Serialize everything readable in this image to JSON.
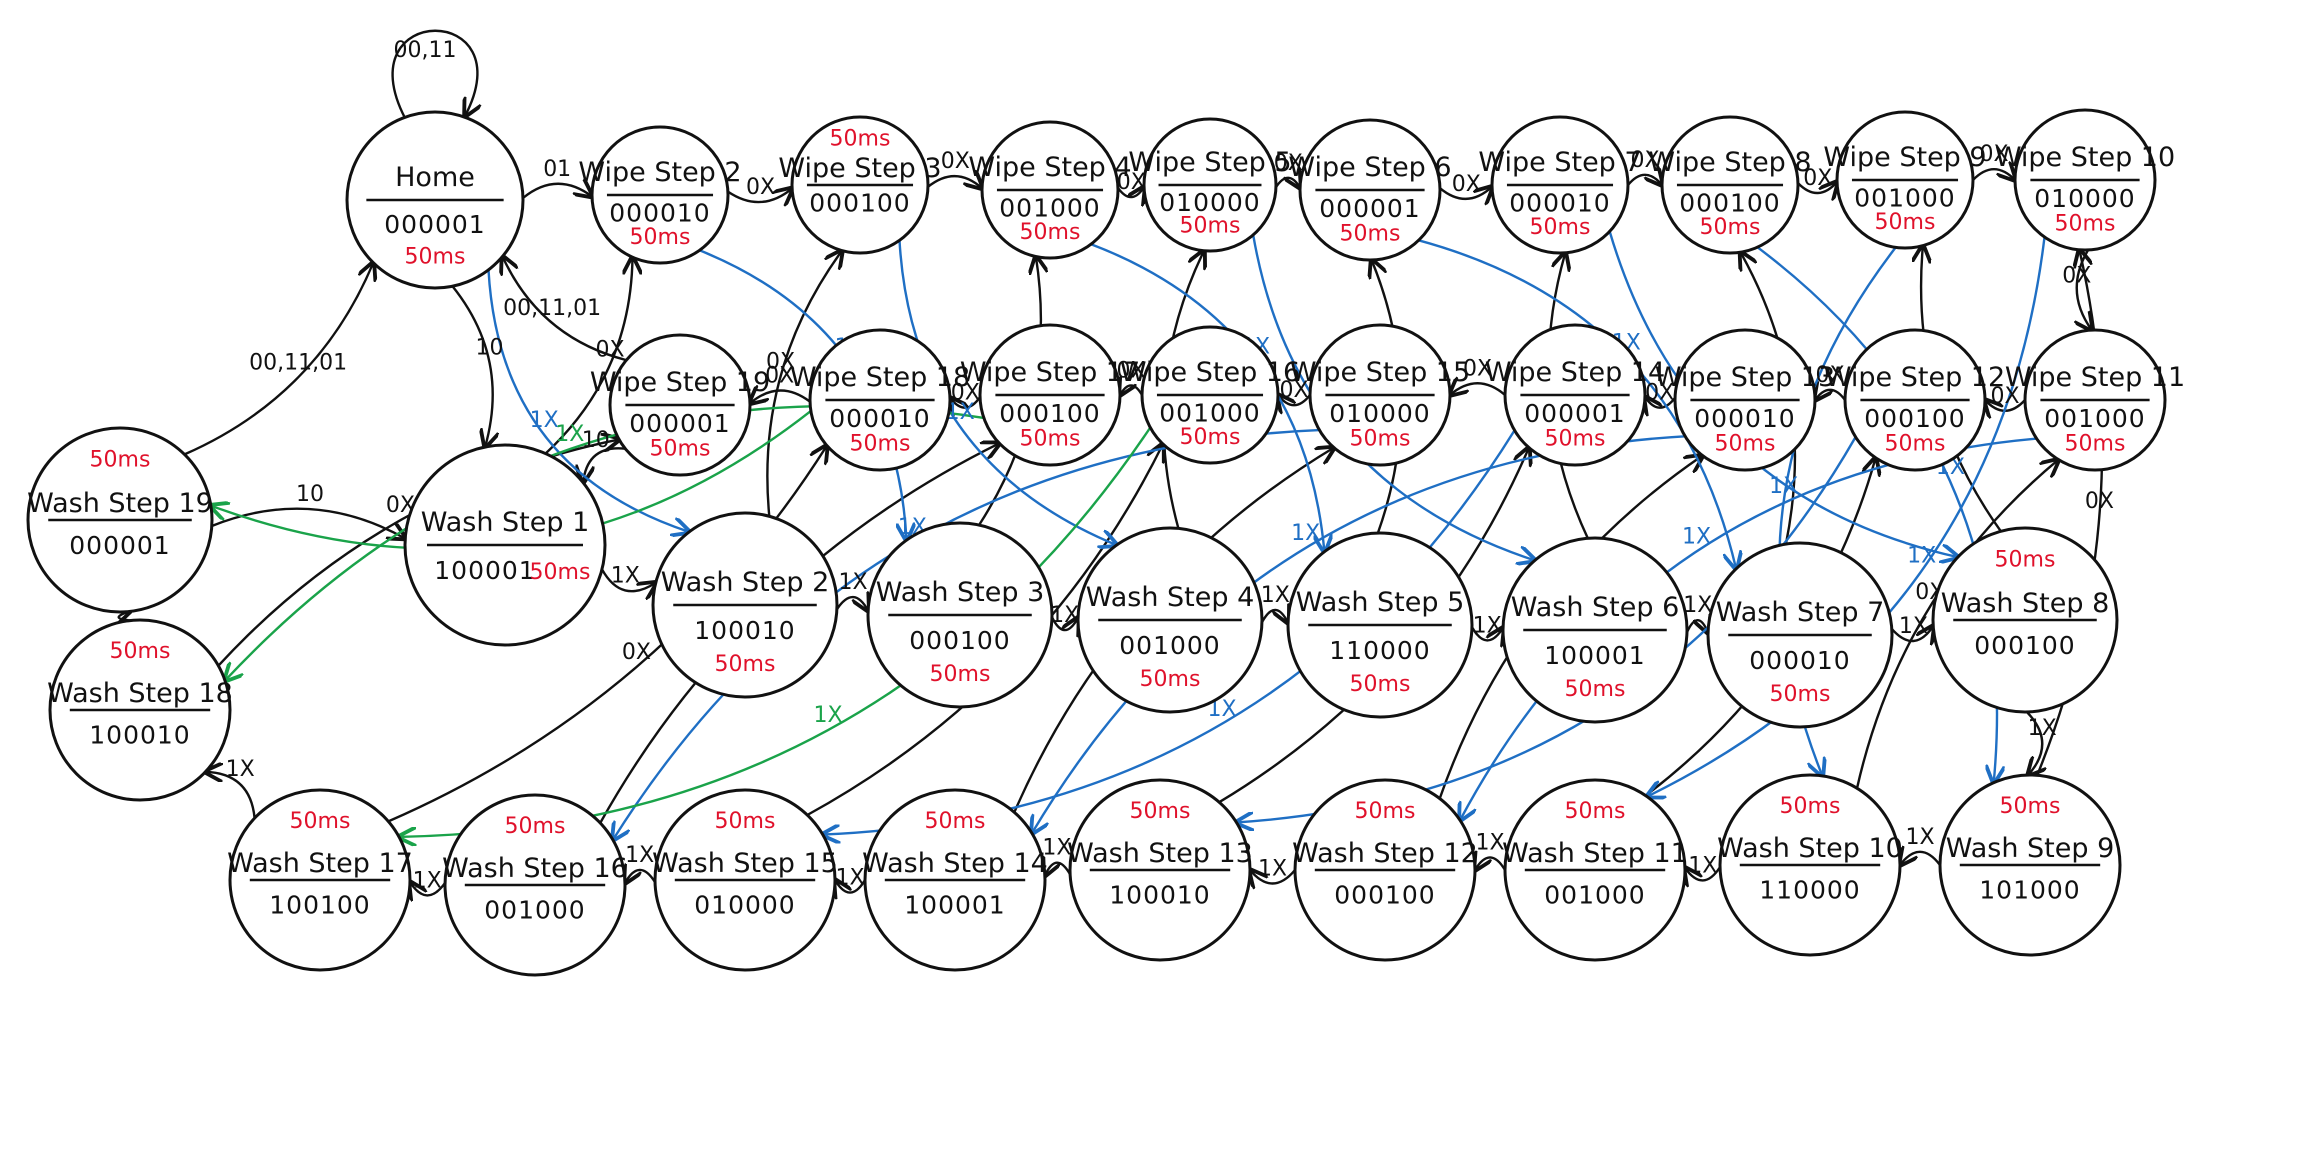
{
  "colors": {
    "ink": "#111111",
    "delay": "#e0112b",
    "blue_edges": "#1f6fc4",
    "green_edges": "#1aa34a"
  },
  "states": {
    "home": {
      "name": "Home",
      "code": "000001",
      "delay": "50ms"
    },
    "wipe2": {
      "name": "Wipe Step 2",
      "code": "000010",
      "delay": "50ms"
    },
    "wipe3": {
      "name": "Wipe Step 3",
      "code": "000100",
      "delay": "50ms"
    },
    "wipe4": {
      "name": "Wipe Step 4",
      "code": "001000",
      "delay": "50ms"
    },
    "wipe5": {
      "name": "Wipe Step 5",
      "code": "010000",
      "delay": "50ms"
    },
    "wipe6": {
      "name": "Wipe Step 6",
      "code": "000001",
      "delay": "50ms"
    },
    "wipe7": {
      "name": "Wipe Step 7",
      "code": "000010",
      "delay": "50ms"
    },
    "wipe8": {
      "name": "Wipe Step 8",
      "code": "000100",
      "delay": "50ms"
    },
    "wipe9": {
      "name": "Wipe Step 9",
      "code": "001000",
      "delay": "50ms"
    },
    "wipe10": {
      "name": "Wipe Step 10",
      "code": "010000",
      "delay": "50ms"
    },
    "wipe11": {
      "name": "Wipe Step 11",
      "code": "001000",
      "delay": "50ms"
    },
    "wipe12": {
      "name": "Wipe Step 12",
      "code": "000100",
      "delay": "50ms"
    },
    "wipe13": {
      "name": "Wipe Step 13",
      "code": "000010",
      "delay": "50ms"
    },
    "wipe14": {
      "name": "Wipe Step 14",
      "code": "000001",
      "delay": "50ms"
    },
    "wipe15": {
      "name": "Wipe Step 15",
      "code": "010000",
      "delay": "50ms"
    },
    "wipe16": {
      "name": "Wipe Step 16",
      "code": "001000",
      "delay": "50ms"
    },
    "wipe17": {
      "name": "Wipe Step 17",
      "code": "000100",
      "delay": "50ms"
    },
    "wipe18": {
      "name": "Wipe Step 18",
      "code": "000010",
      "delay": "50ms"
    },
    "wipe19": {
      "name": "Wipe Step 19",
      "code": "000001",
      "delay": "50ms"
    },
    "wash1": {
      "name": "Wash Step 1",
      "code": "100001",
      "delay": "50ms"
    },
    "wash2": {
      "name": "Wash Step 2",
      "code": "100010",
      "delay": "50ms"
    },
    "wash3": {
      "name": "Wash Step 3",
      "code": "000100",
      "delay": "50ms"
    },
    "wash4": {
      "name": "Wash Step 4",
      "code": "001000",
      "delay": "50ms"
    },
    "wash5": {
      "name": "Wash Step 5",
      "code": "110000",
      "delay": "50ms"
    },
    "wash6": {
      "name": "Wash Step 6",
      "code": "100001",
      "delay": "50ms"
    },
    "wash7": {
      "name": "Wash Step 7",
      "code": "000010",
      "delay": "50ms"
    },
    "wash8": {
      "name": "Wash Step 8",
      "code": "000100",
      "delay": "50ms"
    },
    "wash9": {
      "name": "Wash Step 9",
      "code": "101000",
      "delay": "50ms"
    },
    "wash10": {
      "name": "Wash Step 10",
      "code": "110000",
      "delay": "50ms"
    },
    "wash11": {
      "name": "Wash Step 11",
      "code": "001000",
      "delay": "50ms"
    },
    "wash12": {
      "name": "Wash Step 12",
      "code": "000100",
      "delay": "50ms"
    },
    "wash13": {
      "name": "Wash Step 13",
      "code": "100010",
      "delay": "50ms"
    },
    "wash14": {
      "name": "Wash Step 14",
      "code": "100001",
      "delay": "50ms"
    },
    "wash15": {
      "name": "Wash Step 15",
      "code": "010000",
      "delay": "50ms"
    },
    "wash16": {
      "name": "Wash Step 16",
      "code": "001000",
      "delay": "50ms"
    },
    "wash17": {
      "name": "Wash Step 17",
      "code": "100100",
      "delay": "50ms"
    },
    "wash18": {
      "name": "Wash Step 18",
      "code": "100010",
      "delay": "50ms"
    },
    "wash19": {
      "name": "Wash Step 19",
      "code": "000001",
      "delay": "50ms"
    }
  },
  "edges": [
    {
      "from": "home",
      "to": "home",
      "label": "00,11",
      "color": "ink"
    },
    {
      "from": "home",
      "to": "wipe2",
      "label": "01",
      "color": "ink"
    },
    {
      "from": "wipe2",
      "to": "wipe3",
      "label": "0X",
      "color": "ink"
    },
    {
      "from": "wipe3",
      "to": "wipe4",
      "label": "0X",
      "color": "ink"
    },
    {
      "from": "wipe4",
      "to": "wipe5",
      "label": "0X",
      "color": "ink"
    },
    {
      "from": "wipe5",
      "to": "wipe6",
      "label": "0X",
      "color": "ink"
    },
    {
      "from": "wipe6",
      "to": "wipe7",
      "label": "0X",
      "color": "ink"
    },
    {
      "from": "wipe7",
      "to": "wipe8",
      "label": "0X",
      "color": "ink"
    },
    {
      "from": "wipe8",
      "to": "wipe9",
      "label": "0X",
      "color": "ink"
    },
    {
      "from": "wipe9",
      "to": "wipe10",
      "label": "0X",
      "color": "ink"
    },
    {
      "from": "wipe10",
      "to": "wipe11",
      "label": "0X",
      "color": "ink"
    },
    {
      "from": "wipe11",
      "to": "wipe12",
      "label": "0X",
      "color": "ink"
    },
    {
      "from": "wipe12",
      "to": "wipe13",
      "label": "0X",
      "color": "ink"
    },
    {
      "from": "wipe13",
      "to": "wipe14",
      "label": "0X",
      "color": "ink"
    },
    {
      "from": "wipe14",
      "to": "wipe15",
      "label": "0X",
      "color": "ink"
    },
    {
      "from": "wipe15",
      "to": "wipe16",
      "label": "0X",
      "color": "ink"
    },
    {
      "from": "wipe16",
      "to": "wipe17",
      "label": "0X",
      "color": "ink"
    },
    {
      "from": "wipe17",
      "to": "wipe18",
      "label": "0X",
      "color": "ink"
    },
    {
      "from": "wipe18",
      "to": "wipe19",
      "label": "0X",
      "color": "ink"
    },
    {
      "from": "wipe19",
      "to": "home",
      "label": "00,11,01",
      "color": "ink"
    },
    {
      "from": "wipe19",
      "to": "wash1",
      "label": "10",
      "color": "ink"
    },
    {
      "from": "home",
      "to": "wash1",
      "label": "10",
      "color": "ink"
    },
    {
      "from": "wash1",
      "to": "wash2",
      "label": "1X",
      "color": "ink"
    },
    {
      "from": "wash2",
      "to": "wash3",
      "label": "1X",
      "color": "ink"
    },
    {
      "from": "wash3",
      "to": "wash4",
      "label": "1X",
      "color": "ink"
    },
    {
      "from": "wash4",
      "to": "wash5",
      "label": "1X",
      "color": "ink"
    },
    {
      "from": "wash5",
      "to": "wash6",
      "label": "1X",
      "color": "ink"
    },
    {
      "from": "wash6",
      "to": "wash7",
      "label": "1X",
      "color": "ink"
    },
    {
      "from": "wash7",
      "to": "wash8",
      "label": "1X",
      "color": "ink"
    },
    {
      "from": "wash8",
      "to": "wash9",
      "label": "1X",
      "color": "ink"
    },
    {
      "from": "wash9",
      "to": "wash10",
      "label": "1X",
      "color": "ink"
    },
    {
      "from": "wash10",
      "to": "wash11",
      "label": "1X",
      "color": "ink"
    },
    {
      "from": "wash11",
      "to": "wash12",
      "label": "1X",
      "color": "ink"
    },
    {
      "from": "wash12",
      "to": "wash13",
      "label": "1X",
      "color": "ink"
    },
    {
      "from": "wash13",
      "to": "wash14",
      "label": "1X",
      "color": "ink"
    },
    {
      "from": "wash14",
      "to": "wash15",
      "label": "1X",
      "color": "ink"
    },
    {
      "from": "wash15",
      "to": "wash16",
      "label": "1X",
      "color": "ink"
    },
    {
      "from": "wash16",
      "to": "wash17",
      "label": "1X",
      "color": "ink"
    },
    {
      "from": "wash17",
      "to": "wash18",
      "label": "1X",
      "color": "ink"
    },
    {
      "from": "wash18",
      "to": "wash19",
      "label": "1X",
      "color": "ink"
    },
    {
      "from": "wash19",
      "to": "home",
      "label": "00,11,01",
      "color": "ink"
    },
    {
      "from": "wash19",
      "to": "wash1",
      "label": "10",
      "color": "ink"
    },
    {
      "from": "wash1",
      "to": "wipe2",
      "label": "0X",
      "color": "ink"
    },
    {
      "from": "wash2",
      "to": "wipe3",
      "label": "0X",
      "color": "ink"
    },
    {
      "from": "wash3",
      "to": "wipe4",
      "label": "0X",
      "color": "ink"
    },
    {
      "from": "wash4",
      "to": "wipe5",
      "label": "0X",
      "color": "ink"
    },
    {
      "from": "wash5",
      "to": "wipe6",
      "label": "0X",
      "color": "ink"
    },
    {
      "from": "wash6",
      "to": "wipe7",
      "label": "0X",
      "color": "ink"
    },
    {
      "from": "wash7",
      "to": "wipe8",
      "label": "0X",
      "color": "ink"
    },
    {
      "from": "wash8",
      "to": "wipe9",
      "label": "0X",
      "color": "ink"
    },
    {
      "from": "wash9",
      "to": "wipe10",
      "label": "0X",
      "color": "ink"
    },
    {
      "from": "wash10",
      "to": "wipe11",
      "label": "0X",
      "color": "ink"
    },
    {
      "from": "wash11",
      "to": "wipe12",
      "label": "0X",
      "color": "ink"
    },
    {
      "from": "wash12",
      "to": "wipe13",
      "label": "0X",
      "color": "ink"
    },
    {
      "from": "wash13",
      "to": "wipe14",
      "label": "0X",
      "color": "ink"
    },
    {
      "from": "wash14",
      "to": "wipe15",
      "label": "0X",
      "color": "ink"
    },
    {
      "from": "wash15",
      "to": "wipe16",
      "label": "0X",
      "color": "ink"
    },
    {
      "from": "wash16",
      "to": "wipe17",
      "label": "0X",
      "color": "ink"
    },
    {
      "from": "wash17",
      "to": "wipe18",
      "label": "0X",
      "color": "ink"
    },
    {
      "from": "wash18",
      "to": "wipe19",
      "label": "0X",
      "color": "ink"
    },
    {
      "from": "home",
      "to": "wash2",
      "label": "1X",
      "color": "blue_edges"
    },
    {
      "from": "wipe2",
      "to": "wash3",
      "label": "1X",
      "color": "blue_edges"
    },
    {
      "from": "wipe3",
      "to": "wash4",
      "label": "1X",
      "color": "blue_edges"
    },
    {
      "from": "wipe4",
      "to": "wash5",
      "label": "1X",
      "color": "blue_edges"
    },
    {
      "from": "wipe5",
      "to": "wash6",
      "label": "1X",
      "color": "blue_edges"
    },
    {
      "from": "wipe6",
      "to": "wash7",
      "label": "1X",
      "color": "blue_edges"
    },
    {
      "from": "wipe7",
      "to": "wash8",
      "label": "1X",
      "color": "blue_edges"
    },
    {
      "from": "wipe8",
      "to": "wash9",
      "label": "1X",
      "color": "blue_edges"
    },
    {
      "from": "wipe9",
      "to": "wash10",
      "label": "1X",
      "color": "blue_edges"
    },
    {
      "from": "wipe10",
      "to": "wash11",
      "label": "1X",
      "color": "blue_edges"
    },
    {
      "from": "wipe11",
      "to": "wash12",
      "label": "1X",
      "color": "blue_edges"
    },
    {
      "from": "wipe12",
      "to": "wash13",
      "label": "1X",
      "color": "blue_edges"
    },
    {
      "from": "wipe13",
      "to": "wash14",
      "label": "1X",
      "color": "blue_edges"
    },
    {
      "from": "wipe14",
      "to": "wash15",
      "label": "1X",
      "color": "blue_edges"
    },
    {
      "from": "wipe15",
      "to": "wash16",
      "label": "1X",
      "color": "blue_edges"
    },
    {
      "from": "wipe16",
      "to": "wash17",
      "label": "1X",
      "color": "green_edges"
    },
    {
      "from": "wipe17",
      "to": "wash18",
      "label": "1X",
      "color": "green_edges"
    },
    {
      "from": "wipe18",
      "to": "wash19",
      "label": "1X",
      "color": "green_edges"
    }
  ]
}
